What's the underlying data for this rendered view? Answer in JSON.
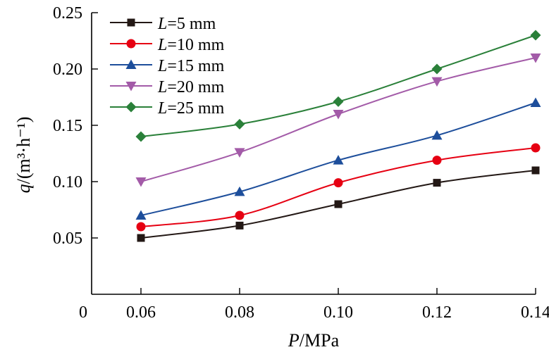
{
  "chart_data": {
    "type": "line",
    "xlabel": {
      "italic": "P",
      "rest": "/MPa"
    },
    "ylabel": {
      "italic": "q",
      "rest": "/(m³·h⁻¹)"
    },
    "x": [
      0.06,
      0.08,
      0.1,
      0.12,
      0.14
    ],
    "x_tick_labels": [
      "0.06",
      "0.08",
      "0.10",
      "0.12",
      "0.14"
    ],
    "y_tick_labels": [
      "0.05",
      "0.10",
      "0.15",
      "0.20",
      "0.25"
    ],
    "y_ticks": [
      0.05,
      0.1,
      0.15,
      0.2,
      0.25
    ],
    "origin_label": "0",
    "xlim": [
      0.05,
      0.14
    ],
    "ylim": [
      0,
      0.25
    ],
    "grid": false,
    "legend_position": "top-left",
    "series": [
      {
        "name": "L=5 mm",
        "label_italic": "L",
        "label_rest": "=5 mm",
        "color": "#231815",
        "marker": "square",
        "values": [
          0.05,
          0.061,
          0.08,
          0.099,
          0.11
        ]
      },
      {
        "name": "L=10 mm",
        "label_italic": "L",
        "label_rest": "=10 mm",
        "color": "#e60012",
        "marker": "circle",
        "values": [
          0.06,
          0.07,
          0.099,
          0.119,
          0.13
        ]
      },
      {
        "name": "L=15 mm",
        "label_italic": "L",
        "label_rest": "=15 mm",
        "color": "#1d4e9b",
        "marker": "triangle-up",
        "values": [
          0.07,
          0.091,
          0.119,
          0.141,
          0.17
        ]
      },
      {
        "name": "L=20 mm",
        "label_italic": "L",
        "label_rest": "=20 mm",
        "color": "#a35ba8",
        "marker": "triangle-down",
        "values": [
          0.1,
          0.126,
          0.16,
          0.189,
          0.21
        ]
      },
      {
        "name": "L=25 mm",
        "label_italic": "L",
        "label_rest": "=25 mm",
        "color": "#2a8039",
        "marker": "diamond",
        "values": [
          0.14,
          0.151,
          0.171,
          0.2,
          0.23
        ]
      }
    ]
  }
}
